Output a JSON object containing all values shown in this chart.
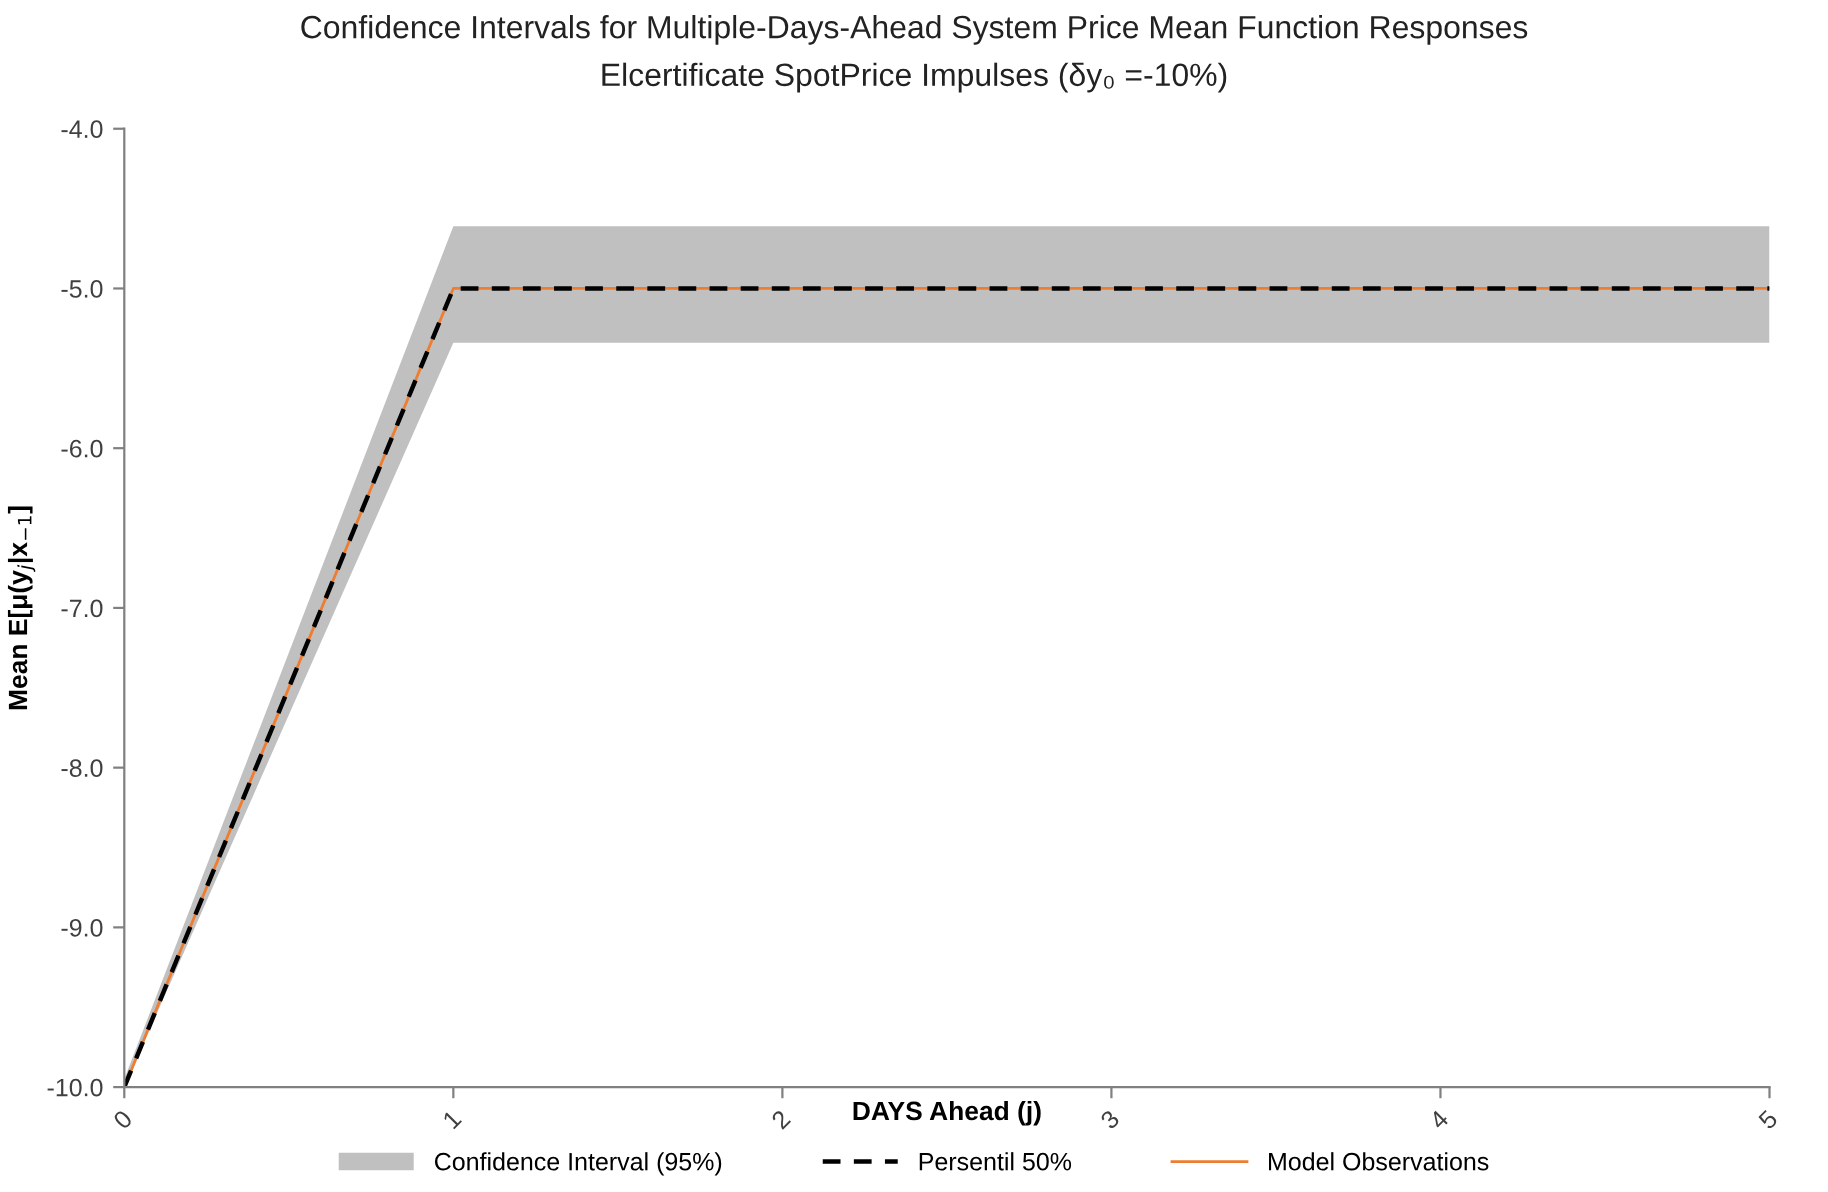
{
  "chart_data": {
    "type": "line",
    "title": "Confidence Intervals for Multiple-Days-Ahead System Price Mean Function Responses",
    "subtitle": "Elcertificate SpotPrice Impulses (δy₀ =-10%)",
    "xlabel": "DAYS Ahead (j)",
    "ylabel": "Mean E[μ(y$_{j}$|x$_{−1}$]",
    "xlim": [
      0,
      5
    ],
    "xticks": [
      0,
      1,
      2,
      3,
      4,
      5
    ],
    "ylim": [
      -10,
      -4
    ],
    "yticks": [
      {
        "value": -10,
        "label": "-10.0"
      },
      {
        "value": -9,
        "label": "-9.0"
      },
      {
        "value": -8,
        "label": "-8.0"
      },
      {
        "value": -7,
        "label": "-7.0"
      },
      {
        "value": -6,
        "label": "-6.0"
      },
      {
        "value": -5,
        "label": "-5.0"
      },
      {
        "value": -4,
        "label": "-4.0"
      }
    ],
    "grid": false,
    "legend": "bottom",
    "series": [
      {
        "name": "Confidence Interval (95%)",
        "type": "area",
        "color": "#c0c0c0",
        "x": [
          0,
          1,
          5
        ],
        "values": [
          null,
          null,
          null
        ],
        "lower": [
          -10,
          -5.34,
          -5.34
        ],
        "upper": [
          -9.95,
          -4.61,
          -4.61
        ]
      },
      {
        "name": "Model Observations",
        "color": "#ed7d31",
        "line_style": "solid",
        "x": [
          0,
          1,
          5
        ],
        "values": [
          -10,
          -5,
          -5
        ]
      },
      {
        "name": "Persentil 50%",
        "color": "#000000",
        "line_style": "dashed",
        "x": [
          0,
          1,
          5
        ],
        "values": [
          -10,
          -5,
          -5
        ]
      }
    ]
  }
}
